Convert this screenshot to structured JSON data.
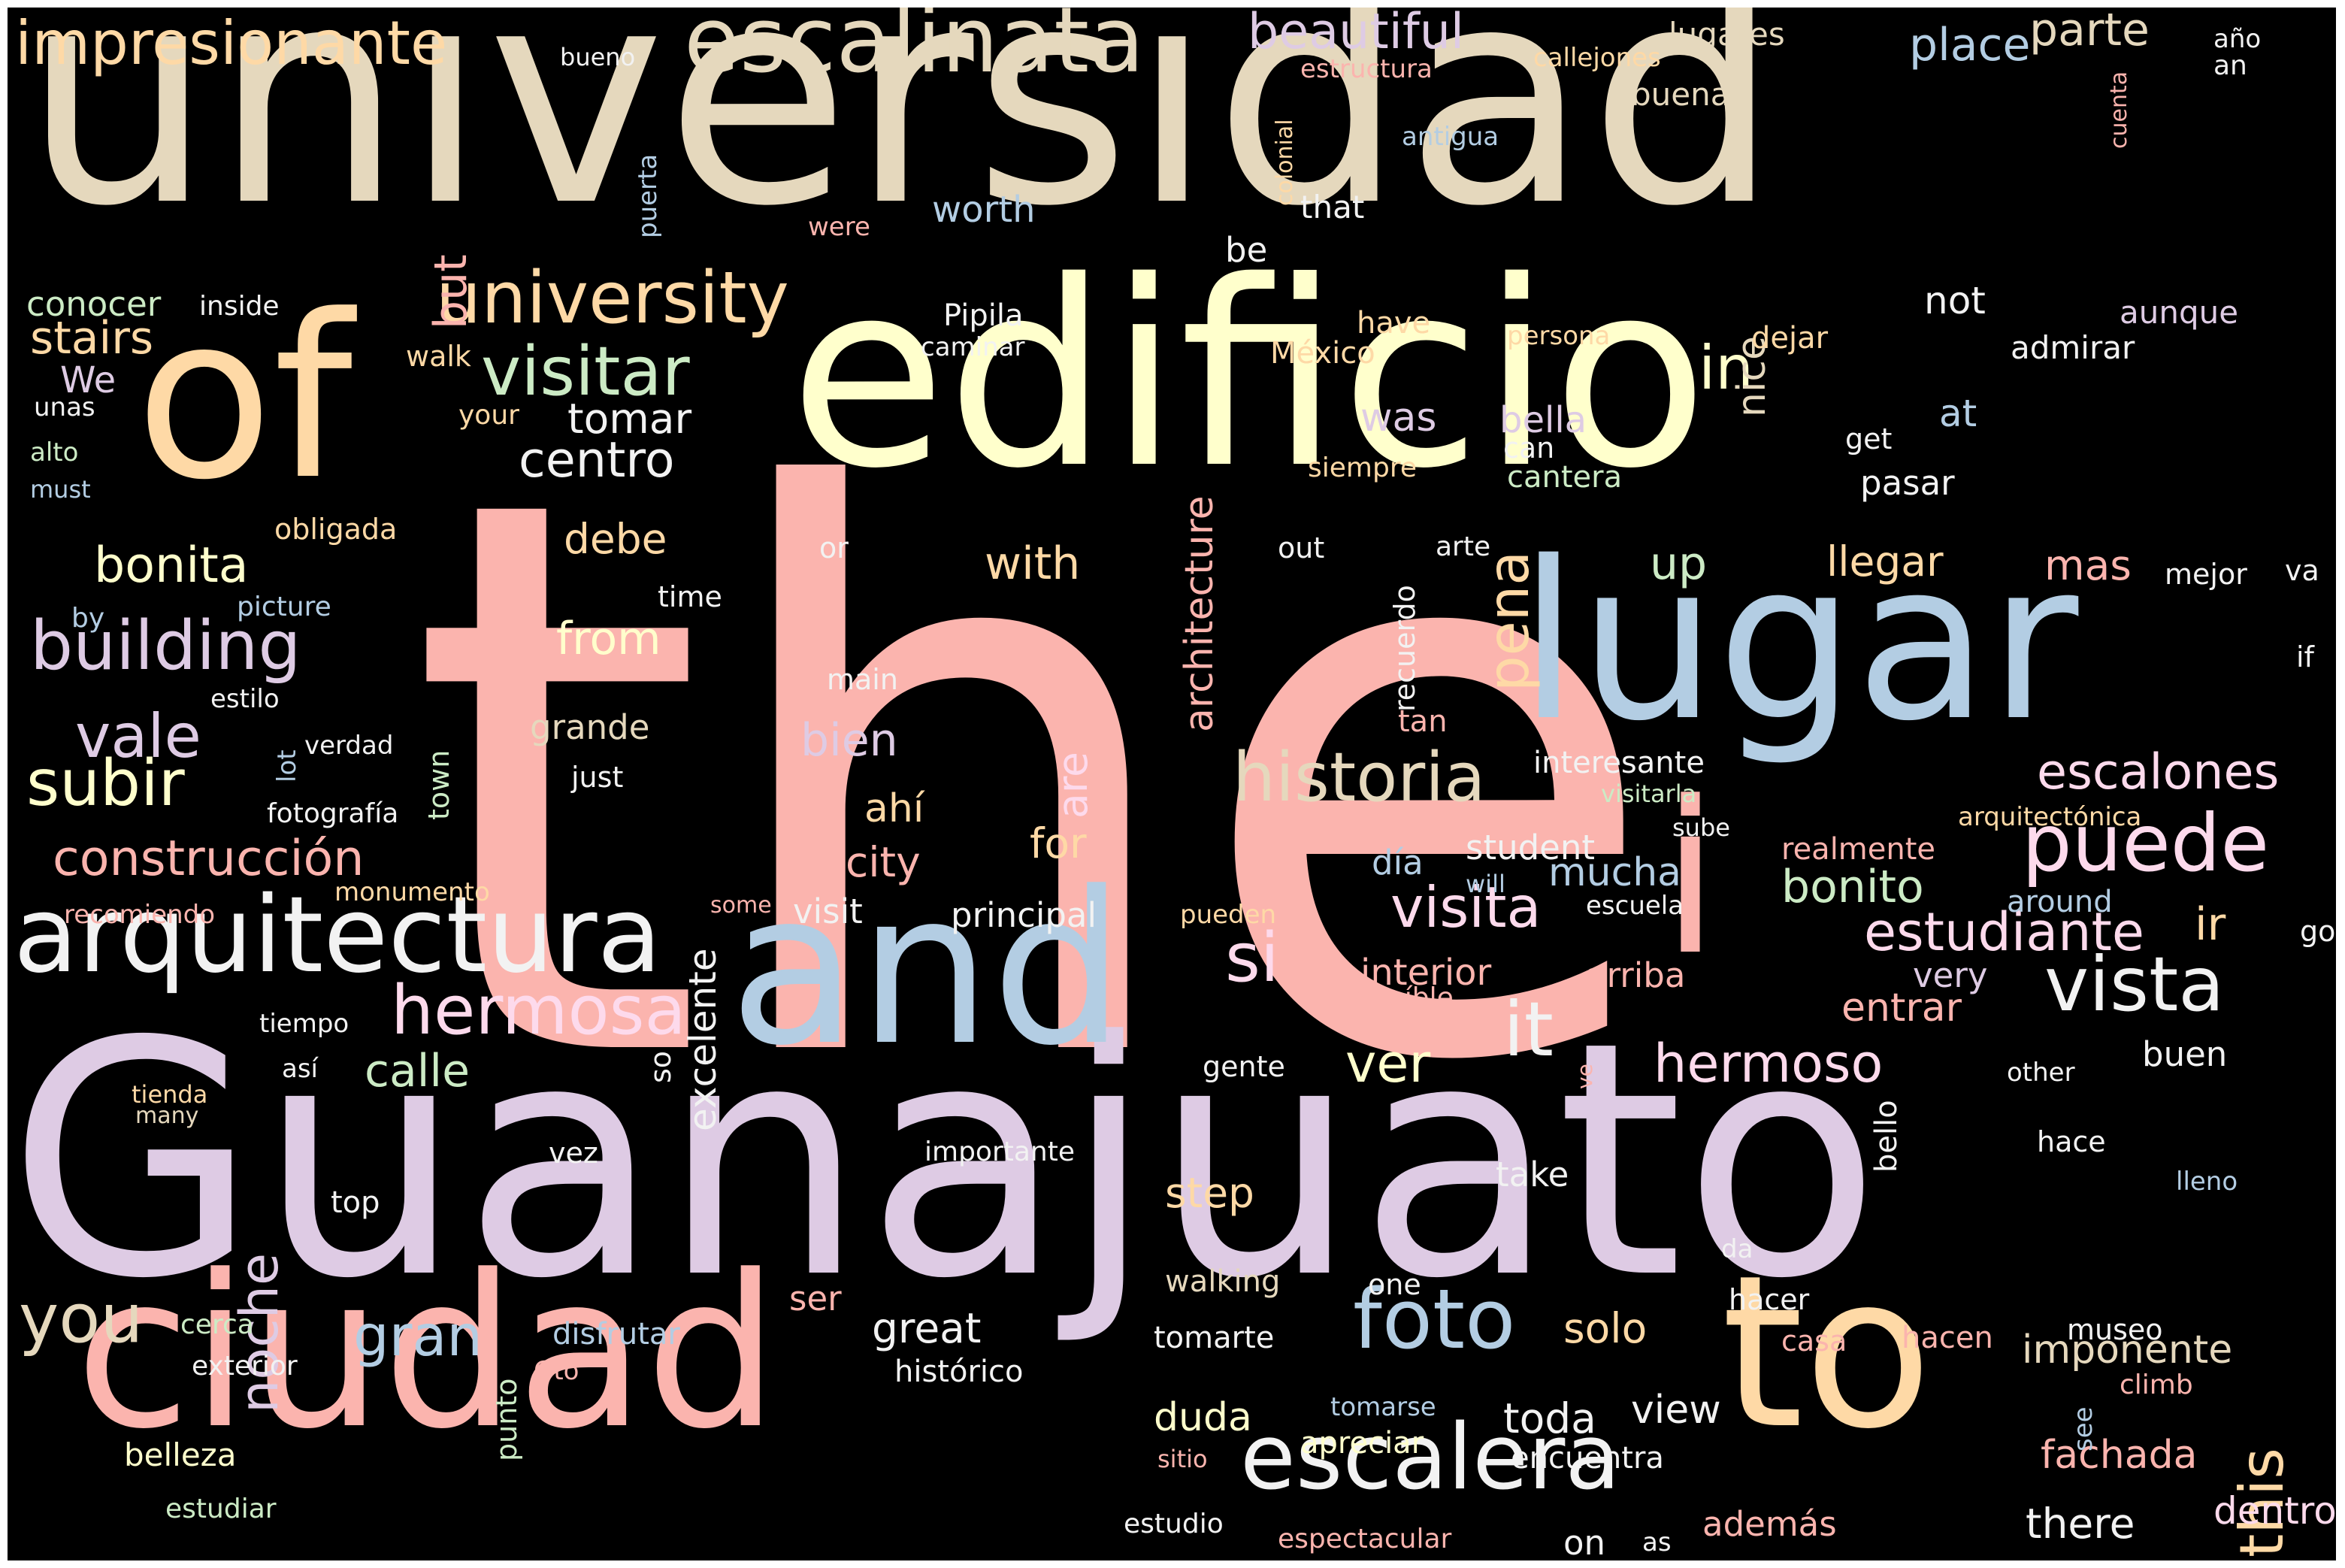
{
  "canvas": {
    "background": "#000000",
    "frame": "#ffffff"
  },
  "palette": {
    "pink": "#fbb4ae",
    "blue": "#b3cde3",
    "green": "#ccebc5",
    "lavender": "#decbe4",
    "peach": "#fed9a6",
    "yellow": "#ffffcc",
    "tan": "#e5d8bd",
    "rose": "#fddaec",
    "white": "#f2f2f2"
  },
  "words": [
    {
      "id": "the",
      "text": "the",
      "color": "pink"
    },
    {
      "id": "guanajuato",
      "text": "Guanajuato",
      "color": "lavender"
    },
    {
      "id": "universidad",
      "text": "universidad",
      "color": "tan"
    },
    {
      "id": "edificio",
      "text": "edificio",
      "color": "yellow"
    },
    {
      "id": "of",
      "text": "of",
      "color": "peach"
    },
    {
      "id": "lugar",
      "text": "lugar",
      "color": "blue"
    },
    {
      "id": "ciudad",
      "text": "ciudad",
      "color": "pink"
    },
    {
      "id": "and",
      "text": "and",
      "color": "blue"
    },
    {
      "id": "to",
      "text": "to",
      "color": "peach"
    },
    {
      "id": "i",
      "text": "i",
      "color": "pink"
    },
    {
      "id": "arquitectura",
      "text": "arquitectura",
      "color": "white"
    },
    {
      "id": "escalera",
      "text": "escalera",
      "color": "white"
    },
    {
      "id": "escalinata",
      "text": "escalinata",
      "color": "tan"
    },
    {
      "id": "foto",
      "text": "foto",
      "color": "blue"
    },
    {
      "id": "historia",
      "text": "historia",
      "color": "tan"
    },
    {
      "id": "university",
      "text": "university",
      "color": "peach"
    },
    {
      "id": "impresionante",
      "text": "impresionante",
      "color": "peach"
    },
    {
      "id": "building",
      "text": "building",
      "color": "lavender"
    },
    {
      "id": "puede",
      "text": "puede",
      "color": "rose"
    },
    {
      "id": "vista",
      "text": "vista",
      "color": "white"
    },
    {
      "id": "hermosa",
      "text": "hermosa",
      "color": "rose"
    },
    {
      "id": "visitar",
      "text": "visitar",
      "color": "green"
    },
    {
      "id": "visita",
      "text": "visita",
      "color": "rose"
    },
    {
      "id": "subir",
      "text": "subir",
      "color": "yellow"
    },
    {
      "id": "it",
      "text": "it",
      "color": "white"
    },
    {
      "id": "you",
      "text": "you",
      "color": "tan"
    },
    {
      "id": "construccion",
      "text": "construcción",
      "color": "pink"
    },
    {
      "id": "estudiante",
      "text": "estudiante",
      "color": "rose"
    },
    {
      "id": "hermoso",
      "text": "hermoso",
      "color": "rose"
    },
    {
      "id": "beautiful",
      "text": "beautiful",
      "color": "lavender"
    },
    {
      "id": "escalones",
      "text": "escalones",
      "color": "rose"
    },
    {
      "id": "si",
      "text": "si",
      "color": "rose"
    },
    {
      "id": "gran",
      "text": "gran",
      "color": "blue"
    },
    {
      "id": "vale",
      "text": "vale",
      "color": "lavender"
    },
    {
      "id": "in",
      "text": "in",
      "color": "yellow"
    },
    {
      "id": "pena",
      "text": "pena",
      "color": "peach"
    },
    {
      "id": "this",
      "text": "this",
      "color": "peach"
    },
    {
      "id": "centro",
      "text": "centro",
      "color": "white"
    },
    {
      "id": "bonita",
      "text": "bonita",
      "color": "yellow"
    },
    {
      "id": "ver",
      "text": "ver",
      "color": "yellow"
    },
    {
      "id": "parte",
      "text": "parte",
      "color": "tan"
    },
    {
      "id": "noche",
      "text": "noche",
      "color": "lavender"
    },
    {
      "id": "calle",
      "text": "calle",
      "color": "green"
    },
    {
      "id": "bonito",
      "text": "bonito",
      "color": "green"
    },
    {
      "id": "place",
      "text": "place",
      "color": "blue"
    },
    {
      "id": "stairs",
      "text": "stairs",
      "color": "peach"
    },
    {
      "id": "with",
      "text": "with",
      "color": "peach"
    },
    {
      "id": "tomar",
      "text": "tomar",
      "color": "white"
    },
    {
      "id": "up",
      "text": "up",
      "color": "green"
    },
    {
      "id": "llegar",
      "text": "llegar",
      "color": "peach"
    },
    {
      "id": "mas",
      "text": "mas",
      "color": "pink"
    },
    {
      "id": "from",
      "text": "from",
      "color": "yellow"
    },
    {
      "id": "debe",
      "text": "debe",
      "color": "peach"
    },
    {
      "id": "bien",
      "text": "bien",
      "color": "lavender"
    },
    {
      "id": "architecture",
      "text": "architecture",
      "color": "pink"
    },
    {
      "id": "but",
      "text": "but",
      "color": "pink"
    },
    {
      "id": "great",
      "text": "great",
      "color": "white"
    },
    {
      "id": "solo",
      "text": "solo",
      "color": "peach"
    },
    {
      "id": "step",
      "text": "step",
      "color": "peach"
    },
    {
      "id": "toda",
      "text": "toda",
      "color": "white"
    },
    {
      "id": "there",
      "text": "there",
      "color": "white"
    },
    {
      "id": "fachada",
      "text": "fachada",
      "color": "pink"
    },
    {
      "id": "imponente",
      "text": "imponente",
      "color": "tan"
    },
    {
      "id": "mucha",
      "text": "mucha",
      "color": "blue"
    },
    {
      "id": "city",
      "text": "city",
      "color": "pink"
    },
    {
      "id": "for",
      "text": "for",
      "color": "peach"
    },
    {
      "id": "are",
      "text": "are",
      "color": "rose"
    },
    {
      "id": "ahi",
      "text": "ahí",
      "color": "peach"
    },
    {
      "id": "excelente",
      "text": "excelente",
      "color": "white"
    },
    {
      "id": "duda",
      "text": "duda",
      "color": "yellow"
    },
    {
      "id": "view",
      "text": "view",
      "color": "white"
    },
    {
      "id": "dentro",
      "text": "dentro",
      "color": "rose"
    },
    {
      "id": "entrar",
      "text": "entrar",
      "color": "pink"
    },
    {
      "id": "ir",
      "text": "ir",
      "color": "peach"
    },
    {
      "id": "interior",
      "text": "interior",
      "color": "pink"
    },
    {
      "id": "arriba",
      "text": "arriba",
      "color": "pink"
    },
    {
      "id": "was",
      "text": "was",
      "color": "lavender"
    },
    {
      "id": "worth",
      "text": "worth",
      "color": "blue"
    },
    {
      "id": "nice",
      "text": "nice",
      "color": "tan"
    },
    {
      "id": "bella",
      "text": "bella",
      "color": "lavender"
    },
    {
      "id": "student",
      "text": "student",
      "color": "white"
    },
    {
      "id": "dia",
      "text": "día",
      "color": "blue"
    },
    {
      "id": "very",
      "text": "very",
      "color": "lavender"
    },
    {
      "id": "conocer",
      "text": "conocer",
      "color": "green"
    },
    {
      "id": "we",
      "text": "We",
      "color": "lavender"
    },
    {
      "id": "not",
      "text": "not",
      "color": "white"
    },
    {
      "id": "at",
      "text": "at",
      "color": "blue"
    },
    {
      "id": "principal",
      "text": "principal",
      "color": "white"
    },
    {
      "id": "visit",
      "text": "visit",
      "color": "white"
    },
    {
      "id": "ser",
      "text": "ser",
      "color": "pink"
    },
    {
      "id": "take",
      "text": "take",
      "color": "white"
    },
    {
      "id": "buen",
      "text": "buen",
      "color": "white"
    },
    {
      "id": "on",
      "text": "on",
      "color": "white"
    },
    {
      "id": "ademas",
      "text": "además",
      "color": "pink"
    },
    {
      "id": "belleza",
      "text": "belleza",
      "color": "yellow"
    },
    {
      "id": "grande",
      "text": "grande",
      "color": "tan"
    },
    {
      "id": "pasar",
      "text": "pasar",
      "color": "white"
    },
    {
      "id": "encuentra",
      "text": "encuentra",
      "color": "white"
    },
    {
      "id": "tomarte",
      "text": "tomarte",
      "color": "white"
    },
    {
      "id": "historico",
      "text": "histórico",
      "color": "white"
    },
    {
      "id": "apreciar",
      "text": "apreciar",
      "color": "yellow"
    },
    {
      "id": "hacen",
      "text": "hacen",
      "color": "pink"
    },
    {
      "id": "disfrutar",
      "text": "disfrutar",
      "color": "blue"
    },
    {
      "id": "walking",
      "text": "walking",
      "color": "tan"
    },
    {
      "id": "bello",
      "text": "bello",
      "color": "white"
    },
    {
      "id": "lugares",
      "text": "lugares",
      "color": "tan"
    },
    {
      "id": "buena",
      "text": "buena",
      "color": "tan"
    },
    {
      "id": "interesante",
      "text": "interesante",
      "color": "white"
    },
    {
      "id": "pipila",
      "text": "Pipila",
      "color": "white"
    },
    {
      "id": "aunque",
      "text": "aunque",
      "color": "lavender"
    },
    {
      "id": "admirar",
      "text": "admirar",
      "color": "white"
    },
    {
      "id": "cantera",
      "text": "cantera",
      "color": "green"
    },
    {
      "id": "be",
      "text": "be",
      "color": "white"
    },
    {
      "id": "have",
      "text": "have",
      "color": "peach"
    },
    {
      "id": "dejar",
      "text": "dejar",
      "color": "peach"
    },
    {
      "id": "mexico",
      "text": "México",
      "color": "peach"
    },
    {
      "id": "realmente",
      "text": "realmente",
      "color": "pink"
    },
    {
      "id": "around",
      "text": "around",
      "color": "blue"
    },
    {
      "id": "tan",
      "text": "tan",
      "color": "pink"
    },
    {
      "id": "mejor",
      "text": "mejor",
      "color": "white"
    },
    {
      "id": "va",
      "text": "va",
      "color": "white"
    },
    {
      "id": "hace",
      "text": "hace",
      "color": "white"
    },
    {
      "id": "one",
      "text": "one",
      "color": "white"
    },
    {
      "id": "gente",
      "text": "gente",
      "color": "white"
    },
    {
      "id": "vez",
      "text": "vez",
      "color": "white"
    },
    {
      "id": "top",
      "text": "top",
      "color": "white"
    },
    {
      "id": "hacer",
      "text": "hacer",
      "color": "white"
    },
    {
      "id": "casa",
      "text": "casa",
      "color": "pink"
    },
    {
      "id": "museo",
      "text": "museo",
      "color": "white"
    },
    {
      "id": "so",
      "text": "so",
      "color": "white"
    },
    {
      "id": "just",
      "text": "just",
      "color": "white"
    },
    {
      "id": "main",
      "text": "main",
      "color": "white"
    },
    {
      "id": "time",
      "text": "time",
      "color": "white"
    },
    {
      "id": "or",
      "text": "or",
      "color": "white"
    },
    {
      "id": "out",
      "text": "out",
      "color": "white"
    },
    {
      "id": "arte",
      "text": "arte",
      "color": "white"
    },
    {
      "id": "recuerdo",
      "text": "recuerdo",
      "color": "white"
    },
    {
      "id": "get",
      "text": "get",
      "color": "white"
    },
    {
      "id": "can",
      "text": "can",
      "color": "white"
    },
    {
      "id": "siempre",
      "text": "siempre",
      "color": "peach"
    },
    {
      "id": "walk",
      "text": "walk",
      "color": "peach"
    },
    {
      "id": "your",
      "text": "your",
      "color": "peach"
    },
    {
      "id": "obligada",
      "text": "obligada",
      "color": "peach"
    },
    {
      "id": "picture",
      "text": "picture",
      "color": "blue"
    },
    {
      "id": "by",
      "text": "by",
      "color": "blue"
    },
    {
      "id": "estilo",
      "text": "estilo",
      "color": "white"
    },
    {
      "id": "verdad",
      "text": "verdad",
      "color": "white"
    },
    {
      "id": "lot",
      "text": "lot",
      "color": "blue"
    },
    {
      "id": "town",
      "text": "town",
      "color": "green"
    },
    {
      "id": "fotografia",
      "text": "fotografía",
      "color": "white"
    },
    {
      "id": "recomiendo",
      "text": "recomiendo",
      "color": "pink"
    },
    {
      "id": "monumento",
      "text": "monumento",
      "color": "peach"
    },
    {
      "id": "tiempo",
      "text": "tiempo",
      "color": "white"
    },
    {
      "id": "asi",
      "text": "así",
      "color": "white"
    },
    {
      "id": "tienda",
      "text": "tienda",
      "color": "peach"
    },
    {
      "id": "many",
      "text": "many",
      "color": "tan"
    },
    {
      "id": "cerca",
      "text": "cerca",
      "color": "green"
    },
    {
      "id": "exterior",
      "text": "exterior",
      "color": "white"
    },
    {
      "id": "gto",
      "text": "Gto",
      "color": "pink"
    },
    {
      "id": "estudiar",
      "text": "estudiar",
      "color": "green"
    },
    {
      "id": "punto",
      "text": "punto",
      "color": "green"
    },
    {
      "id": "sitio",
      "text": "sitio",
      "color": "pink"
    },
    {
      "id": "estudio",
      "text": "estudio",
      "color": "white"
    },
    {
      "id": "espectacular",
      "text": "espectacular",
      "color": "pink"
    },
    {
      "id": "as",
      "text": "as",
      "color": "white"
    },
    {
      "id": "tomarse",
      "text": "tomarse",
      "color": "blue"
    },
    {
      "id": "importante",
      "text": "importante",
      "color": "white"
    },
    {
      "id": "da",
      "text": "da",
      "color": "white"
    },
    {
      "id": "climb",
      "text": "climb",
      "color": "pink"
    },
    {
      "id": "see",
      "text": "see",
      "color": "blue"
    },
    {
      "id": "lleno",
      "text": "lleno",
      "color": "blue"
    },
    {
      "id": "other",
      "text": "other",
      "color": "white"
    },
    {
      "id": "increible",
      "text": "increíble",
      "color": "pink"
    },
    {
      "id": "escuela",
      "text": "escuela",
      "color": "white"
    },
    {
      "id": "pueden",
      "text": "pueden",
      "color": "peach"
    },
    {
      "id": "some",
      "text": "some",
      "color": "pink"
    },
    {
      "id": "will",
      "text": "will",
      "color": "blue"
    },
    {
      "id": "sube",
      "text": "sube",
      "color": "white"
    },
    {
      "id": "visitarla",
      "text": "visitarla",
      "color": "green"
    },
    {
      "id": "arquitectonica",
      "text": "arquitectónica",
      "color": "peach"
    },
    {
      "id": "go",
      "text": "go",
      "color": "white"
    },
    {
      "id": "if",
      "text": "if",
      "color": "white"
    },
    {
      "id": "ve",
      "text": "ve",
      "color": "pink"
    },
    {
      "id": "bueno",
      "text": "bueno",
      "color": "white"
    },
    {
      "id": "estructura",
      "text": "estructura",
      "color": "pink"
    },
    {
      "id": "callejones",
      "text": "callejones",
      "color": "peach"
    },
    {
      "id": "ano",
      "text": "año",
      "color": "white"
    },
    {
      "id": "an",
      "text": "an",
      "color": "white"
    },
    {
      "id": "antigua",
      "text": "antigua",
      "color": "blue"
    },
    {
      "id": "colonial",
      "text": "colonial",
      "color": "peach"
    },
    {
      "id": "that",
      "text": "that",
      "color": "white"
    },
    {
      "id": "cuenta",
      "text": "cuenta",
      "color": "pink"
    },
    {
      "id": "puerta",
      "text": "puerta",
      "color": "blue"
    },
    {
      "id": "were",
      "text": "were",
      "color": "pink"
    },
    {
      "id": "caminar",
      "text": "caminar",
      "color": "white"
    },
    {
      "id": "persona",
      "text": "persona",
      "color": "peach"
    },
    {
      "id": "inside",
      "text": "inside",
      "color": "white"
    },
    {
      "id": "unas",
      "text": "unas",
      "color": "white"
    },
    {
      "id": "alto",
      "text": "alto",
      "color": "green"
    },
    {
      "id": "must",
      "text": "must",
      "color": "blue"
    }
  ]
}
